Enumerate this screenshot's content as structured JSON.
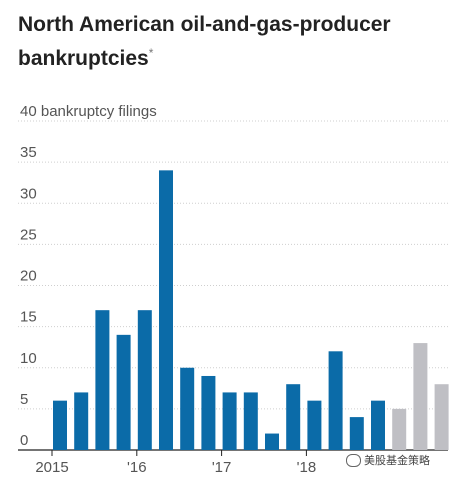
{
  "title": "North American oil-and-gas-producer bankruptcies",
  "title_marker": "*",
  "watermark": "美股基金策略",
  "chart_data": {
    "type": "bar",
    "ylabel": "bankruptcy filings",
    "ylim": [
      0,
      40
    ],
    "yticks": [
      0,
      5,
      10,
      15,
      20,
      25,
      30,
      35,
      40
    ],
    "ytick_labels": [
      "0",
      "5",
      "10",
      "15",
      "20",
      "25",
      "30",
      "35",
      "40 bankruptcy filings"
    ],
    "x_tick_labels": [
      {
        "label": "2015",
        "at_bar": 0
      },
      {
        "label": "'16",
        "at_bar": 4
      },
      {
        "label": "'17",
        "at_bar": 8
      },
      {
        "label": "'18",
        "at_bar": 12
      }
    ],
    "values": [
      6,
      7,
      17,
      14,
      17,
      34,
      10,
      9,
      7,
      7,
      2,
      8,
      6,
      12,
      4,
      6,
      5,
      13,
      8
    ],
    "series_colors": {
      "actual": "#0b6ba8",
      "projected": "#bfbfc4"
    },
    "projected_from_index": 16,
    "grid": true
  }
}
